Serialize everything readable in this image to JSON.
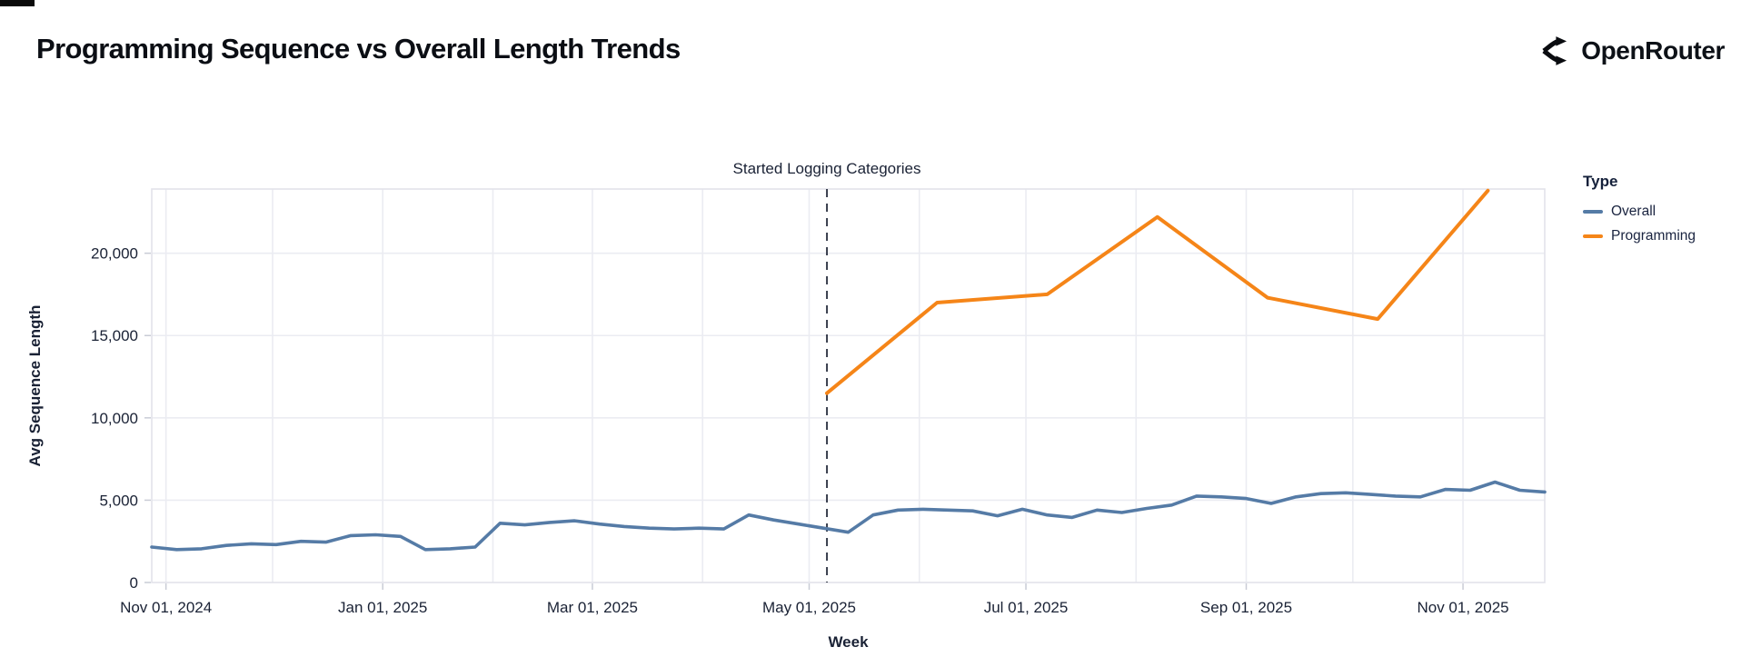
{
  "header": {
    "title": "Programming Sequence vs Overall Length Trends",
    "brand": "OpenRouter"
  },
  "icons": {
    "brand_icon": "openrouter-merge-arrows"
  },
  "chart_data": {
    "type": "line",
    "title": "Programming Sequence vs Overall Length Trends",
    "xlabel": "Week",
    "ylabel": "Avg Sequence Length",
    "x_domain": [
      "2024-10-28",
      "2025-11-24"
    ],
    "ylim": [
      0,
      23900
    ],
    "grid": true,
    "legend": {
      "title": "Type",
      "position": "right",
      "entries": [
        {
          "label": "Overall",
          "color": "#557ba6"
        },
        {
          "label": "Programming",
          "color": "#f58518"
        }
      ]
    },
    "annotation": {
      "label": "Started Logging Categories",
      "date": "2025-05-06",
      "style": "dashed-vertical-rule",
      "color": "#1b2132"
    },
    "y_ticks": [
      {
        "value": 0,
        "label": "0"
      },
      {
        "value": 5000,
        "label": "5,000"
      },
      {
        "value": 10000,
        "label": "10,000"
      },
      {
        "value": 15000,
        "label": "15,000"
      },
      {
        "value": 20000,
        "label": "20,000"
      }
    ],
    "x_ticks": [
      {
        "date": "2024-11-01",
        "label": "Nov 01, 2024"
      },
      {
        "date": "2024-12-01",
        "label": ""
      },
      {
        "date": "2025-01-01",
        "label": "Jan 01, 2025"
      },
      {
        "date": "2025-02-01",
        "label": ""
      },
      {
        "date": "2025-03-01",
        "label": "Mar 01, 2025"
      },
      {
        "date": "2025-04-01",
        "label": ""
      },
      {
        "date": "2025-05-01",
        "label": "May 01, 2025"
      },
      {
        "date": "2025-06-01",
        "label": ""
      },
      {
        "date": "2025-07-01",
        "label": "Jul 01, 2025"
      },
      {
        "date": "2025-08-01",
        "label": ""
      },
      {
        "date": "2025-09-01",
        "label": "Sep 01, 2025"
      },
      {
        "date": "2025-10-01",
        "label": ""
      },
      {
        "date": "2025-11-01",
        "label": "Nov 01, 2025"
      }
    ],
    "series": [
      {
        "name": "Overall",
        "color": "#557ba6",
        "start": "2024-10-28",
        "interval_days": 7,
        "values": [
          2150,
          2000,
          2050,
          2250,
          2350,
          2300,
          2500,
          2450,
          2850,
          2900,
          2800,
          2000,
          2050,
          2150,
          3600,
          3500,
          3650,
          3750,
          3550,
          3400,
          3300,
          3250,
          3300,
          3250,
          4100,
          3800,
          3550,
          3300,
          3050,
          4100,
          4400,
          4450,
          4400,
          4350,
          4050,
          4450,
          4100,
          3950,
          4400,
          4250,
          4500,
          4700,
          5250,
          5200,
          5100,
          4800,
          5200,
          5400,
          5450,
          5350,
          5250,
          5200,
          5650,
          5600,
          6100,
          5600,
          5500
        ]
      },
      {
        "name": "Programming",
        "color": "#f58518",
        "points": [
          [
            "2025-05-06",
            11500
          ],
          [
            "2025-06-06",
            17000
          ],
          [
            "2025-07-07",
            17500
          ],
          [
            "2025-08-07",
            22200
          ],
          [
            "2025-09-07",
            17300
          ],
          [
            "2025-10-08",
            16000
          ],
          [
            "2025-11-08",
            23800
          ]
        ]
      }
    ],
    "style": {
      "gridline_color": "#ebecf2",
      "frame_color": "#e2e3ea",
      "tick_color": "#c9ccd6",
      "axis_text_color": "#1a2235",
      "title_color": "#0b0e14"
    }
  }
}
